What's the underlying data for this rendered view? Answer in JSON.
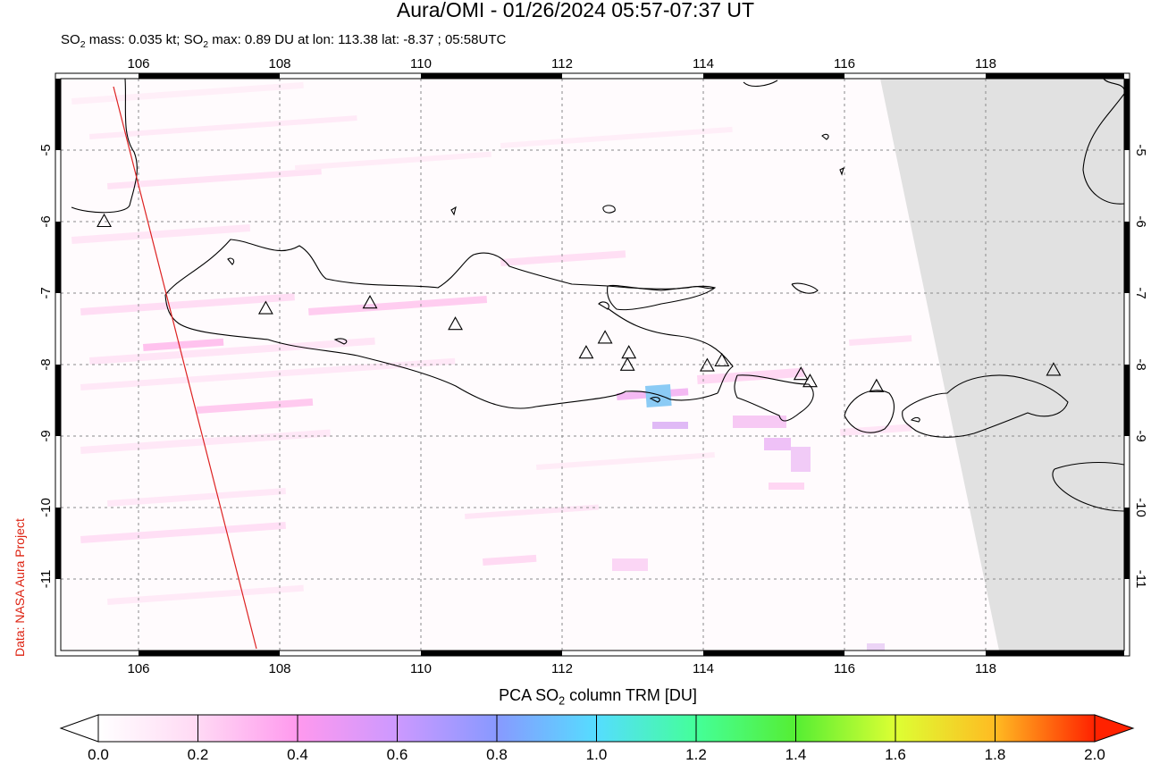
{
  "header": {
    "title": "Aura/OMI - 01/26/2024 05:57-07:37 UT",
    "stats_prefix": "SO",
    "stats_sub": "2",
    "stats_mid": " mass: 0.035 kt; SO",
    "stats_sub2": "2",
    "stats_suffix": " max: 0.89 DU at lon: 113.38 lat: -8.37 ; 05:58UTC"
  },
  "credit": "Data: NASA Aura Project",
  "map": {
    "lon_ticks": [
      "106",
      "108",
      "110",
      "112",
      "114",
      "116",
      "118"
    ],
    "lat_ticks": [
      "-5",
      "-6",
      "-7",
      "-8",
      "-9",
      "-10",
      "-11"
    ],
    "lon_range": [
      104.8,
      120.0
    ],
    "lat_range": [
      -12.1,
      -4.1
    ],
    "no_data_color": "#e1e1e1",
    "volcano_marker": "triangle-icon",
    "volcanoes": [
      {
        "lon": 105.42,
        "lat": -6.1
      },
      {
        "lon": 107.73,
        "lat": -7.32
      },
      {
        "lon": 109.22,
        "lat": -7.24
      },
      {
        "lon": 110.44,
        "lat": -7.54
      },
      {
        "lon": 112.31,
        "lat": -7.94
      },
      {
        "lon": 112.58,
        "lat": -7.73
      },
      {
        "lon": 112.92,
        "lat": -7.94
      },
      {
        "lon": 112.9,
        "lat": -8.11
      },
      {
        "lon": 114.04,
        "lat": -8.12
      },
      {
        "lon": 114.25,
        "lat": -8.05
      },
      {
        "lon": 115.38,
        "lat": -8.24
      },
      {
        "lon": 115.51,
        "lat": -8.34
      },
      {
        "lon": 116.46,
        "lat": -8.41
      },
      {
        "lon": 118.99,
        "lat": -8.18
      }
    ]
  },
  "colorbar": {
    "title_prefix": "PCA SO",
    "title_sub": "2",
    "title_suffix": " column TRM [DU]",
    "ticks": [
      "0.0",
      "0.2",
      "0.4",
      "0.6",
      "0.8",
      "1.0",
      "1.2",
      "1.4",
      "1.6",
      "1.8",
      "2.0"
    ],
    "colors": [
      "#ffffff",
      "#ffd9f4",
      "#ff99ee",
      "#cc99ff",
      "#8899ff",
      "#55ddff",
      "#44ff99",
      "#55ee33",
      "#ddff33",
      "#ffbb22",
      "#ff2200"
    ]
  }
}
